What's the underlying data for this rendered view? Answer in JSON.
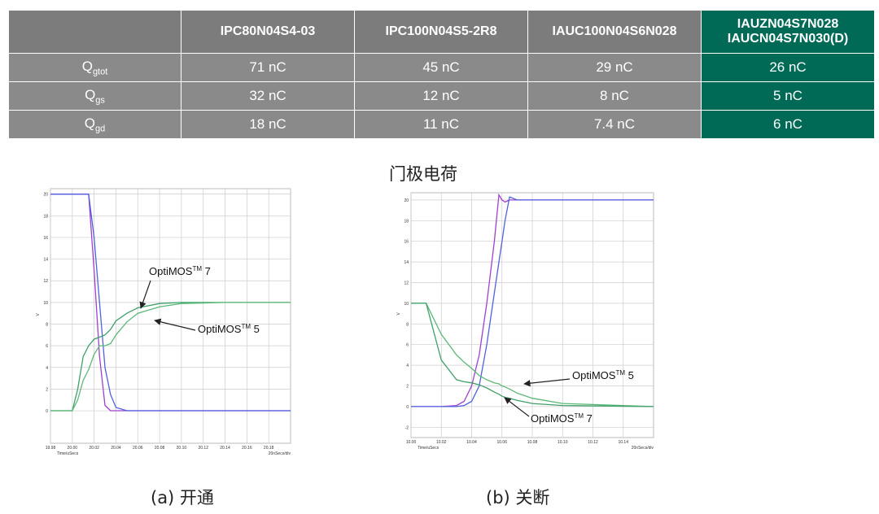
{
  "table": {
    "columns": [
      "IPC80N04S4-03",
      "IPC100N04S5-2R8",
      "IAUC100N04S6N028",
      [
        "IAUZN04S7N028",
        "IAUCN04S7N030(D)"
      ]
    ],
    "rows": [
      {
        "label": "Q",
        "sub": "gtot",
        "cells": [
          "71 nC",
          "45 nC",
          "29 nC",
          "26 nC"
        ]
      },
      {
        "label": "Q",
        "sub": "gs",
        "cells": [
          "32 nC",
          "12 nC",
          "8 nC",
          "5 nC"
        ]
      },
      {
        "label": "Q",
        "sub": "gd",
        "cells": [
          "18 nC",
          "11 nC",
          "7.4 nC",
          "6 nC"
        ]
      }
    ]
  },
  "caption": "门极电荷",
  "chart_data": [
    {
      "type": "line",
      "caption": "(a) 开通",
      "x_label": "Time/uSecs",
      "y_label": "V",
      "scale_label": "20nSecs/div",
      "xlim": [
        19.98,
        20.2
      ],
      "ylim": [
        -3,
        20.5
      ],
      "xticks": [
        19.98,
        {
          "value": 20,
          "label": "20.00"
        },
        20.02,
        20.04,
        20.06,
        20.08,
        {
          "value": 20.1,
          "label": "20.10"
        },
        20.12,
        20.14,
        20.16,
        20.18
      ],
      "yticks": [
        0,
        2,
        4,
        6,
        8,
        10,
        12,
        14,
        16,
        18,
        20
      ],
      "grid": true,
      "x": [
        19.98,
        20.0,
        20.005,
        20.01,
        20.015,
        20.02,
        20.025,
        20.03,
        20.035,
        20.04,
        20.05,
        20.06,
        20.08,
        20.1,
        20.14,
        20.2
      ],
      "series": [
        {
          "color": "#a040d0",
          "values": [
            20,
            20,
            20,
            20,
            20,
            13,
            5,
            0.5,
            0,
            0,
            0,
            0,
            0,
            0,
            0,
            0
          ]
        },
        {
          "color": "#5060e0",
          "values": [
            20,
            20,
            20,
            20,
            20,
            16,
            10,
            4,
            1.5,
            0.3,
            0,
            0,
            0,
            0,
            0,
            0
          ]
        },
        {
          "color": "#3fa06a",
          "values": [
            0,
            0,
            2,
            5,
            6,
            6.6,
            6.8,
            7,
            7.5,
            8.3,
            9,
            9.5,
            9.9,
            10,
            10,
            10
          ]
        },
        {
          "color": "#5cb878",
          "values": [
            0,
            0,
            1,
            2.8,
            3.8,
            5.2,
            6,
            6,
            6.2,
            7,
            8.2,
            9,
            9.6,
            9.9,
            10,
            10
          ]
        }
      ],
      "annotations": [
        {
          "text": "OptiMOS",
          "sup": "TM",
          "suffix": " 7"
        },
        {
          "text": "OptiMOS",
          "sup": "TM",
          "suffix": " 5"
        }
      ]
    },
    {
      "type": "line",
      "caption": "(b) 关断",
      "x_label": "Time/uSecs",
      "y_label": "V",
      "scale_label": "20nSecs/div",
      "xlim": [
        10.0,
        10.16
      ],
      "ylim": [
        -3,
        20.7
      ],
      "xticks": [
        {
          "value": 10,
          "label": "10.00"
        },
        10.02,
        10.04,
        10.06,
        10.08,
        {
          "value": 10.1,
          "label": "10.10"
        },
        10.12,
        10.14
      ],
      "yticks": [
        -2,
        0,
        2,
        4,
        6,
        8,
        10,
        12,
        14,
        16,
        18,
        20
      ],
      "grid": true,
      "x": [
        10.0,
        10.01,
        10.02,
        10.03,
        10.035,
        10.04,
        10.045,
        10.05,
        10.055,
        10.058,
        10.06,
        10.062,
        10.065,
        10.07,
        10.08,
        10.1,
        10.16
      ],
      "series": [
        {
          "color": "#a040d0",
          "values": [
            0,
            0,
            0,
            0.1,
            0.5,
            2,
            5,
            10,
            16,
            20.5,
            20,
            19.8,
            20,
            20,
            20,
            20,
            20
          ]
        },
        {
          "color": "#5060e0",
          "values": [
            0,
            0,
            0,
            0,
            0.1,
            0.5,
            2,
            6,
            11,
            14,
            16,
            18,
            20.3,
            20,
            20,
            20,
            20
          ]
        },
        {
          "color": "#5cb878",
          "values": [
            10,
            10,
            7,
            5,
            4.3,
            3.7,
            3,
            2.6,
            2.3,
            2.2,
            2,
            1.9,
            1.7,
            1.3,
            0.8,
            0.3,
            0
          ]
        },
        {
          "color": "#3fa06a",
          "values": [
            10,
            10,
            4.5,
            2.6,
            2.4,
            2.3,
            2.1,
            1.8,
            1.4,
            1.2,
            1,
            0.9,
            0.8,
            0.6,
            0.3,
            0.1,
            0
          ]
        }
      ],
      "annotations": [
        {
          "text": "OptiMOS",
          "sup": "TM",
          "suffix": " 5"
        },
        {
          "text": "OptiMOS",
          "sup": "TM",
          "suffix": " 7"
        }
      ]
    }
  ]
}
